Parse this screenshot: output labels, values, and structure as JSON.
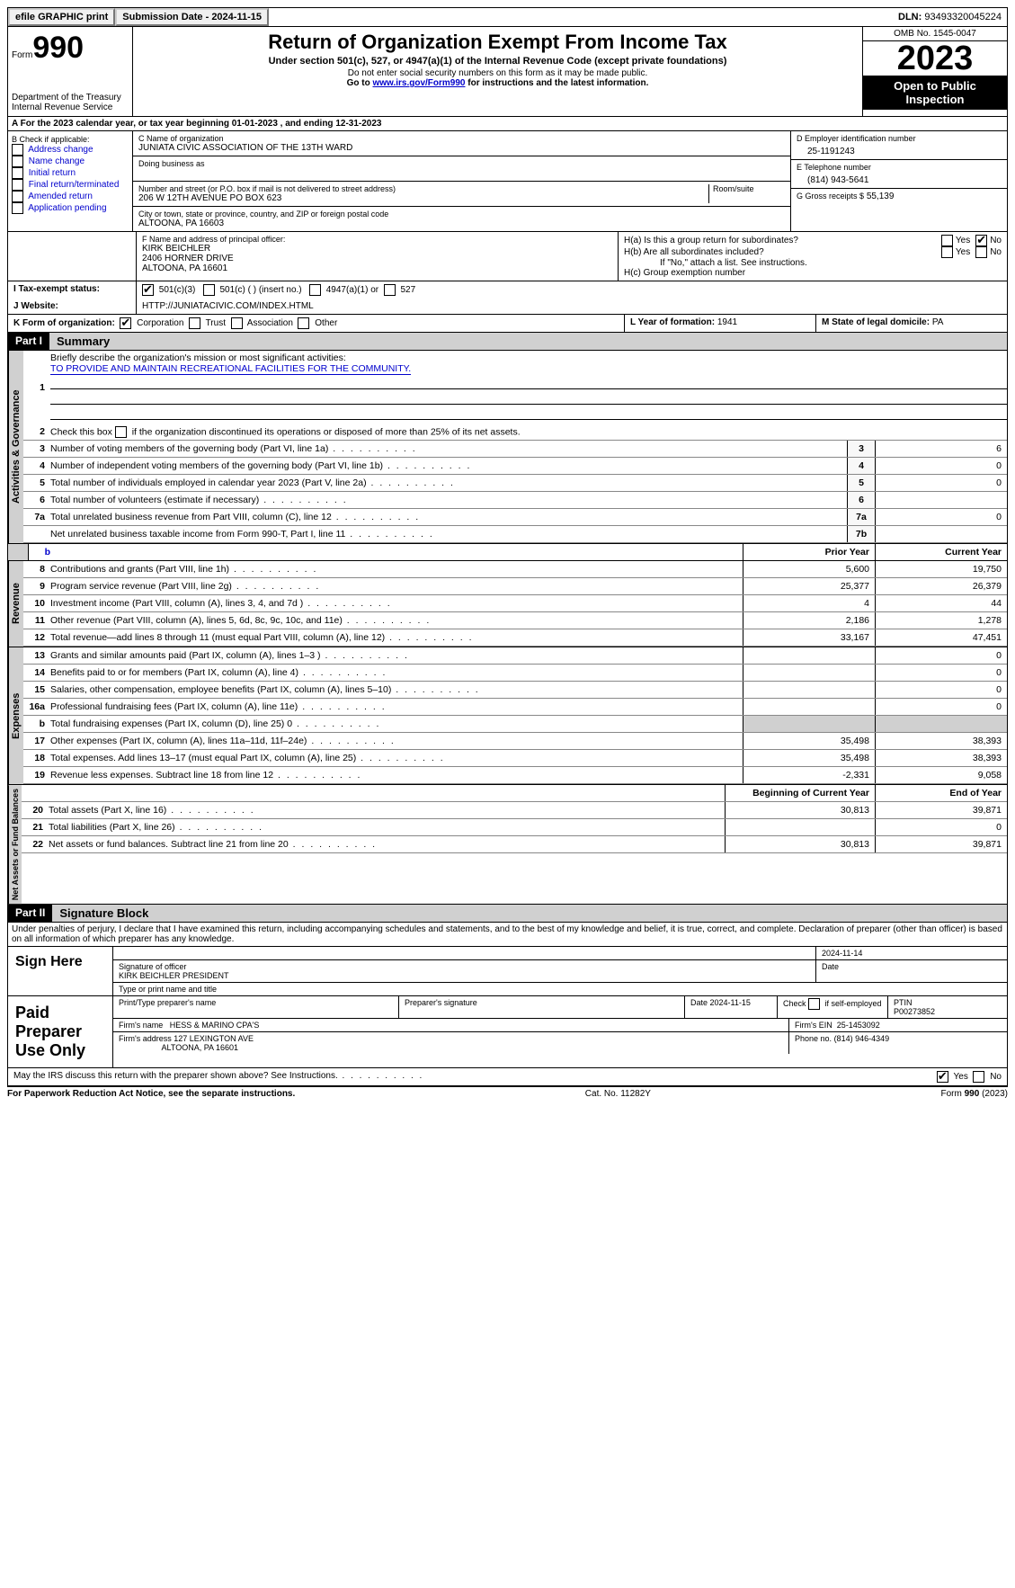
{
  "top": {
    "efile": "efile GRAPHIC print",
    "submission": "Submission Date - 2024-11-15",
    "dln_label": "DLN:",
    "dln": "93493320045224"
  },
  "header": {
    "form_word": "Form",
    "form_num": "990",
    "dept": "Department of the Treasury Internal Revenue Service",
    "title": "Return of Organization Exempt From Income Tax",
    "sub": "Under section 501(c), 527, or 4947(a)(1) of the Internal Revenue Code (except private foundations)",
    "note1": "Do not enter social security numbers on this form as it may be made public.",
    "note2_pre": "Go to ",
    "note2_link": "www.irs.gov/Form990",
    "note2_post": " for instructions and the latest information.",
    "omb": "OMB No. 1545-0047",
    "year": "2023",
    "open": "Open to Public Inspection"
  },
  "a": {
    "text": "A For the 2023 calendar year, or tax year beginning 01-01-2023   , and ending 12-31-2023"
  },
  "b": {
    "label": "B Check if applicable:",
    "opts": [
      "Address change",
      "Name change",
      "Initial return",
      "Final return/terminated",
      "Amended return",
      "Application pending"
    ]
  },
  "c": {
    "name_label": "C Name of organization",
    "name": "JUNIATA CIVIC ASSOCIATION OF THE 13TH WARD",
    "dba_label": "Doing business as",
    "addr_label": "Number and street (or P.O. box if mail is not delivered to street address)",
    "addr": "206 W 12TH AVENUE PO BOX 623",
    "room_label": "Room/suite",
    "city_label": "City or town, state or province, country, and ZIP or foreign postal code",
    "city": "ALTOONA, PA  16603"
  },
  "d": {
    "label": "D Employer identification number",
    "val": "25-1191243"
  },
  "e": {
    "label": "E Telephone number",
    "val": "(814) 943-5641"
  },
  "g": {
    "label": "G Gross receipts $",
    "val": "55,139"
  },
  "f": {
    "label": "F  Name and address of principal officer:",
    "name": "KIRK BEICHLER",
    "addr1": "2406 HORNER DRIVE",
    "addr2": "ALTOONA, PA  16601"
  },
  "h": {
    "a": "H(a)  Is this a group return for subordinates?",
    "b": "H(b)  Are all subordinates included?",
    "note": "If \"No,\" attach a list. See instructions.",
    "c": "H(c)  Group exemption number"
  },
  "i": {
    "label": "I  Tax-exempt status:",
    "o1": "501(c)(3)",
    "o2": "501(c) (  ) (insert no.)",
    "o3": "4947(a)(1) or",
    "o4": "527"
  },
  "j": {
    "label": "J  Website:",
    "val": "HTTP://JUNIATACIVIC.COM/INDEX.HTML"
  },
  "k": {
    "label": "K Form of organization:",
    "o1": "Corporation",
    "o2": "Trust",
    "o3": "Association",
    "o4": "Other"
  },
  "l": {
    "label": "L Year of formation:",
    "val": "1941"
  },
  "m": {
    "label": "M State of legal domicile:",
    "val": "PA"
  },
  "part1": {
    "label": "Part I",
    "title": "Summary",
    "q1": "Briefly describe the organization's mission or most significant activities:",
    "mission": "TO PROVIDE AND MAINTAIN RECREATIONAL FACILITIES FOR THE COMMUNITY.",
    "q2": "Check this box        if the organization discontinued its operations or disposed of more than 25% of its net assets.",
    "lines_gov": [
      {
        "n": "3",
        "d": "Number of voting members of the governing body (Part VI, line 1a)",
        "box": "3",
        "v": "6"
      },
      {
        "n": "4",
        "d": "Number of independent voting members of the governing body (Part VI, line 1b)",
        "box": "4",
        "v": "0"
      },
      {
        "n": "5",
        "d": "Total number of individuals employed in calendar year 2023 (Part V, line 2a)",
        "box": "5",
        "v": "0"
      },
      {
        "n": "6",
        "d": "Total number of volunteers (estimate if necessary)",
        "box": "6",
        "v": ""
      },
      {
        "n": "7a",
        "d": "Total unrelated business revenue from Part VIII, column (C), line 12",
        "box": "7a",
        "v": "0"
      },
      {
        "n": "",
        "d": "Net unrelated business taxable income from Form 990-T, Part I, line 11",
        "box": "7b",
        "v": ""
      }
    ],
    "lines_rev": [
      {
        "n": "8",
        "d": "Contributions and grants (Part VIII, line 1h)",
        "py": "5,600",
        "cy": "19,750"
      },
      {
        "n": "9",
        "d": "Program service revenue (Part VIII, line 2g)",
        "py": "25,377",
        "cy": "26,379"
      },
      {
        "n": "10",
        "d": "Investment income (Part VIII, column (A), lines 3, 4, and 7d )",
        "py": "4",
        "cy": "44"
      },
      {
        "n": "11",
        "d": "Other revenue (Part VIII, column (A), lines 5, 6d, 8c, 9c, 10c, and 11e)",
        "py": "2,186",
        "cy": "1,278"
      },
      {
        "n": "12",
        "d": "Total revenue—add lines 8 through 11 (must equal Part VIII, column (A), line 12)",
        "py": "33,167",
        "cy": "47,451"
      }
    ],
    "lines_exp": [
      {
        "n": "13",
        "d": "Grants and similar amounts paid (Part IX, column (A), lines 1–3 )",
        "py": "",
        "cy": "0"
      },
      {
        "n": "14",
        "d": "Benefits paid to or for members (Part IX, column (A), line 4)",
        "py": "",
        "cy": "0"
      },
      {
        "n": "15",
        "d": "Salaries, other compensation, employee benefits (Part IX, column (A), lines 5–10)",
        "py": "",
        "cy": "0"
      },
      {
        "n": "16a",
        "d": "Professional fundraising fees (Part IX, column (A), line 11e)",
        "py": "",
        "cy": "0"
      },
      {
        "n": "b",
        "d": "Total fundraising expenses (Part IX, column (D), line 25) 0",
        "py": "GREY",
        "cy": "GREY"
      },
      {
        "n": "17",
        "d": "Other expenses (Part IX, column (A), lines 11a–11d, 11f–24e)",
        "py": "35,498",
        "cy": "38,393"
      },
      {
        "n": "18",
        "d": "Total expenses. Add lines 13–17 (must equal Part IX, column (A), line 25)",
        "py": "35,498",
        "cy": "38,393"
      },
      {
        "n": "19",
        "d": "Revenue less expenses. Subtract line 18 from line 12",
        "py": "-2,331",
        "cy": "9,058"
      }
    ],
    "lines_net": [
      {
        "n": "20",
        "d": "Total assets (Part X, line 16)",
        "py": "30,813",
        "cy": "39,871"
      },
      {
        "n": "21",
        "d": "Total liabilities (Part X, line 26)",
        "py": "",
        "cy": "0"
      },
      {
        "n": "22",
        "d": "Net assets or fund balances. Subtract line 21 from line 20",
        "py": "30,813",
        "cy": "39,871"
      }
    ],
    "hdr_py": "Prior Year",
    "hdr_cy": "Current Year",
    "hdr_by": "Beginning of Current Year",
    "hdr_ey": "End of Year",
    "vtab1": "Activities & Governance",
    "vtab2": "Revenue",
    "vtab3": "Expenses",
    "vtab4": "Net Assets or Fund Balances"
  },
  "part2": {
    "label": "Part II",
    "title": "Signature Block",
    "decl": "Under penalties of perjury, I declare that I have examined this return, including accompanying schedules and statements, and to the best of my knowledge and belief, it is true, correct, and complete. Declaration of preparer (other than officer) is based on all information of which preparer has any knowledge.",
    "sign_here": "Sign Here",
    "sig_of": "Signature of officer",
    "sig_name": "KIRK BEICHLER PRESIDENT",
    "sig_type": "Type or print name and title",
    "date_label": "Date",
    "date_val": "2024-11-14",
    "paid": "Paid Preparer Use Only",
    "prep_name_label": "Print/Type preparer's name",
    "prep_sig_label": "Preparer's signature",
    "prep_date": "Date 2024-11-15",
    "self_emp": "Check        if self-employed",
    "ptin_label": "PTIN",
    "ptin": "P00273852",
    "firm_name_label": "Firm's name",
    "firm_name": "HESS & MARINO CPA'S",
    "firm_ein_label": "Firm's EIN",
    "firm_ein": "25-1453092",
    "firm_addr_label": "Firm's address",
    "firm_addr": "127 LEXINGTON AVE",
    "firm_city": "ALTOONA, PA  16601",
    "phone_label": "Phone no.",
    "phone": "(814) 946-4349",
    "discuss": "May the IRS discuss this return with the preparer shown above? See Instructions.",
    "yes": "Yes",
    "no": "No"
  },
  "footer": {
    "left": "For Paperwork Reduction Act Notice, see the separate instructions.",
    "mid": "Cat. No. 11282Y",
    "right": "Form 990 (2023)"
  }
}
